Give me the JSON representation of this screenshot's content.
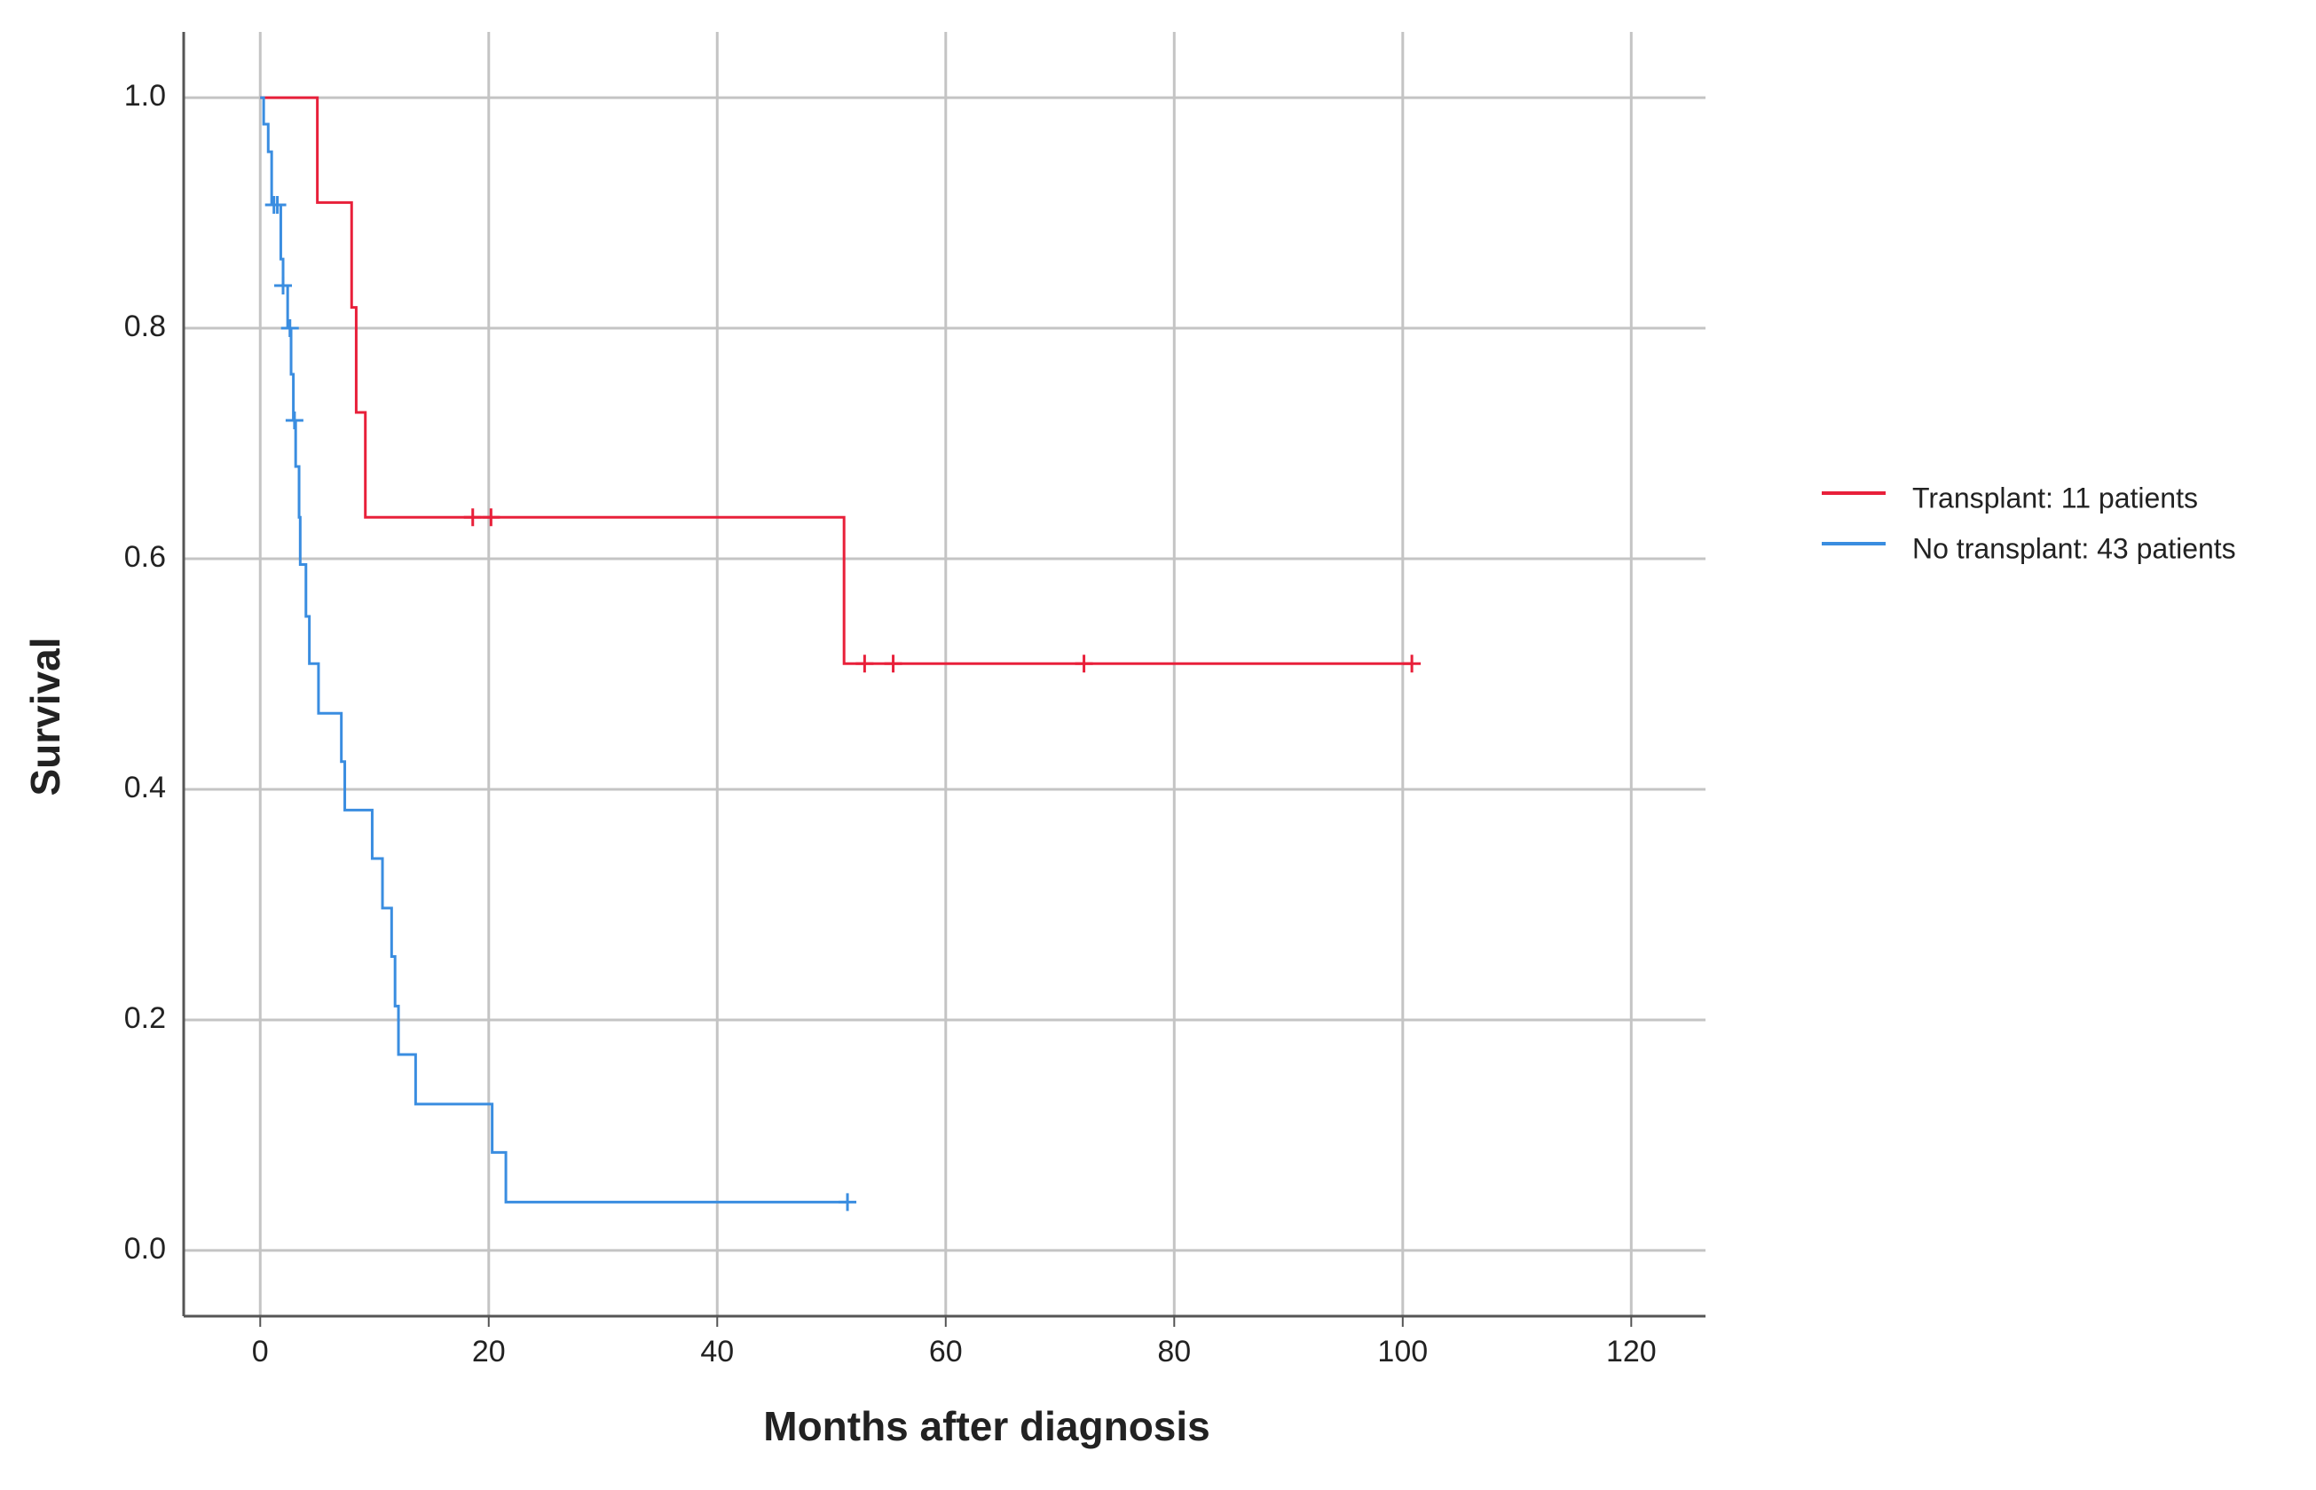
{
  "chart_data": {
    "type": "step",
    "x_label": "Months after diagnosis",
    "y_label": "Survival",
    "xlim": [
      -6.7,
      126.5
    ],
    "ylim": [
      -0.057,
      1.057
    ],
    "xticks": [
      0,
      20,
      40,
      60,
      80,
      100,
      120
    ],
    "yticks": [
      {
        "value": 0,
        "label": "0.0"
      },
      0.2,
      0.4,
      0.6,
      0.8,
      {
        "value": 1,
        "label": "1.0"
      }
    ],
    "grid": true,
    "legend": "right",
    "series": [
      {
        "name": "Transplant: 11 patients",
        "color": "#e8203a",
        "x": [
          0,
          5.0,
          8.0,
          8.4,
          9.2,
          51.1,
          100.8
        ],
        "values": [
          1.0,
          0.909,
          0.818,
          0.727,
          0.636,
          0.509,
          0.509
        ],
        "censored_x": [
          18.6,
          20.2,
          52.9,
          55.4,
          72.1,
          100.8
        ],
        "censored_values": [
          0.636,
          0.636,
          0.509,
          0.509,
          0.509,
          0.509
        ]
      },
      {
        "name": "No transplant: 43 patients",
        "color": "#3a8de0",
        "x": [
          0,
          0.3,
          0.7,
          1.0,
          1.8,
          2.0,
          2.4,
          2.7,
          2.9,
          3.1,
          3.4,
          3.5,
          4.0,
          4.3,
          5.1,
          7.1,
          7.4,
          9.8,
          10.7,
          11.5,
          11.8,
          12.1,
          13.6,
          20.3,
          21.5,
          51.4
        ],
        "values": [
          1.0,
          0.977,
          0.953,
          0.907,
          0.86,
          0.837,
          0.8,
          0.76,
          0.72,
          0.68,
          0.636,
          0.595,
          0.55,
          0.509,
          0.466,
          0.424,
          0.382,
          0.34,
          0.297,
          0.255,
          0.212,
          0.17,
          0.127,
          0.085,
          0.042,
          0.042
        ],
        "censored_x": [
          1.2,
          1.5,
          2.0,
          2.6,
          3.0,
          51.4
        ],
        "censored_values": [
          0.907,
          0.907,
          0.837,
          0.8,
          0.72,
          0.042
        ]
      }
    ]
  }
}
